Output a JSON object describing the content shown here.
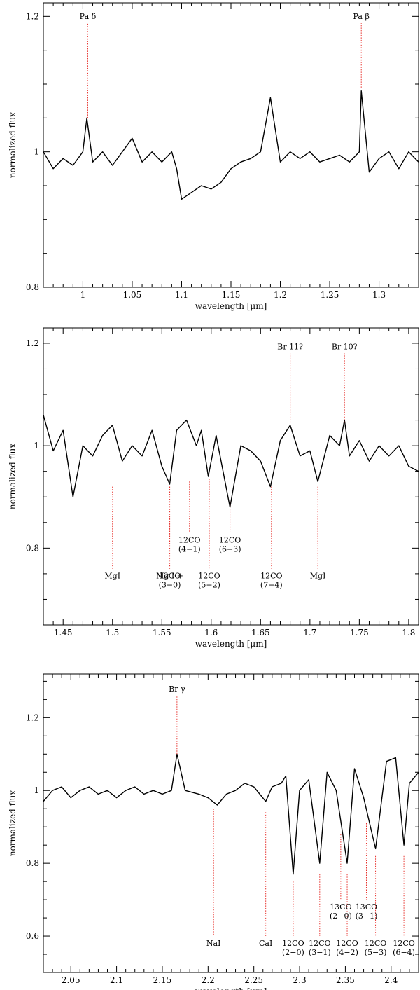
{
  "chart_data": [
    {
      "type": "line",
      "xlabel": "wavelength [μm]",
      "ylabel": "normalized flux",
      "xlim": [
        0.96,
        1.34
      ],
      "ylim": [
        0.8,
        1.22
      ],
      "x_ticks": [
        1,
        1.05,
        1.1,
        1.15,
        1.2,
        1.25,
        1.3
      ],
      "x_tick_labels": [
        "1",
        "1.05",
        "1.1",
        "1.15",
        "1.2",
        "1.25",
        "1.3"
      ],
      "y_ticks": [
        0.8,
        1,
        1.2
      ],
      "y_tick_labels": [
        "0.8",
        "1",
        "1.2"
      ],
      "series": [
        {
          "x": [
            0.96,
            0.97,
            0.98,
            0.99,
            1.0,
            1.004,
            1.01,
            1.02,
            1.03,
            1.04,
            1.05,
            1.06,
            1.07,
            1.08,
            1.09,
            1.095,
            1.1,
            1.11,
            1.12,
            1.13,
            1.14,
            1.15,
            1.16,
            1.17,
            1.18,
            1.19,
            1.2,
            1.21,
            1.22,
            1.23,
            1.24,
            1.25,
            1.26,
            1.27,
            1.28,
            1.282,
            1.29,
            1.3,
            1.31,
            1.32,
            1.33,
            1.34
          ],
          "y": [
            1.0,
            0.975,
            0.99,
            0.98,
            1.0,
            1.05,
            0.985,
            1.0,
            0.98,
            1.0,
            1.02,
            0.985,
            1.0,
            0.985,
            1.0,
            0.975,
            0.93,
            0.94,
            0.95,
            0.945,
            0.955,
            0.975,
            0.985,
            0.99,
            1.0,
            1.08,
            0.985,
            1.0,
            0.99,
            1.0,
            0.985,
            0.99,
            0.995,
            0.985,
            1.0,
            1.09,
            0.97,
            0.99,
            1.0,
            0.975,
            1.0,
            0.985
          ]
        }
      ],
      "lines": [
        {
          "label": "Pa δ",
          "x": 1.005,
          "y_from": 1.05,
          "y_to": 1.19,
          "label_position": "above"
        },
        {
          "label": "Pa β",
          "x": 1.282,
          "y_from": 1.095,
          "y_to": 1.19,
          "label_position": "above"
        }
      ]
    },
    {
      "type": "line",
      "xlabel": "wavelength [μm]",
      "ylabel": "normalized flux",
      "xlim": [
        1.43,
        1.81
      ],
      "ylim": [
        0.65,
        1.23
      ],
      "x_ticks": [
        1.45,
        1.5,
        1.55,
        1.6,
        1.65,
        1.7,
        1.75,
        1.8
      ],
      "x_tick_labels": [
        "1.45",
        "1.5",
        "1.55",
        "1.6",
        "1.65",
        "1.7",
        "1.75",
        "1.8"
      ],
      "y_ticks": [
        0.8,
        1,
        1.2
      ],
      "y_tick_labels": [
        "0.8",
        "1",
        "1.2"
      ],
      "series": [
        {
          "x": [
            1.43,
            1.44,
            1.45,
            1.46,
            1.47,
            1.48,
            1.49,
            1.5,
            1.51,
            1.52,
            1.53,
            1.54,
            1.55,
            1.558,
            1.565,
            1.575,
            1.585,
            1.59,
            1.597,
            1.605,
            1.61,
            1.619,
            1.63,
            1.64,
            1.65,
            1.66,
            1.67,
            1.68,
            1.69,
            1.7,
            1.708,
            1.72,
            1.73,
            1.735,
            1.74,
            1.75,
            1.76,
            1.77,
            1.78,
            1.79,
            1.8,
            1.81
          ],
          "y": [
            1.06,
            0.99,
            1.03,
            0.9,
            1.0,
            0.98,
            1.02,
            1.04,
            0.97,
            1.0,
            0.98,
            1.03,
            0.96,
            0.925,
            1.03,
            1.05,
            1.0,
            1.03,
            0.94,
            1.02,
            0.97,
            0.88,
            1.0,
            0.99,
            0.97,
            0.92,
            1.01,
            1.04,
            0.98,
            0.99,
            0.93,
            1.02,
            1.0,
            1.05,
            0.98,
            1.01,
            0.97,
            1.0,
            0.98,
            1.0,
            0.96,
            0.95
          ]
        }
      ],
      "lines": [
        {
          "label": "Br 11?",
          "x": 1.68,
          "y_from": 1.045,
          "y_to": 1.18,
          "label_position": "above"
        },
        {
          "label": "Br 10?",
          "x": 1.735,
          "y_from": 1.045,
          "y_to": 1.18,
          "label_position": "above"
        },
        {
          "label": "MgI",
          "x": 1.5,
          "y_from": 0.92,
          "y_to": 0.76,
          "label_position": "below"
        },
        {
          "label": "Mg I +",
          "x": 1.558,
          "y_from": 0.92,
          "y_to": 0.76,
          "label_position": "below"
        },
        {
          "label": "12CO (3−0)",
          "x": 1.558,
          "y_from": 0.92,
          "y_to": 0.76,
          "label_position": "below"
        },
        {
          "label": "12CO (4−1)",
          "x": 1.578,
          "y_from": 0.93,
          "y_to": 0.83,
          "label_position": "below"
        },
        {
          "label": "12CO (5−2)",
          "x": 1.598,
          "y_from": 0.935,
          "y_to": 0.76,
          "label_position": "below"
        },
        {
          "label": "12CO (6−3)",
          "x": 1.619,
          "y_from": 0.89,
          "y_to": 0.83,
          "label_position": "below"
        },
        {
          "label": "12CO (7−4)",
          "x": 1.661,
          "y_from": 0.92,
          "y_to": 0.76,
          "label_position": "below"
        },
        {
          "label": "MgI",
          "x": 1.708,
          "y_from": 0.92,
          "y_to": 0.76,
          "label_position": "below"
        }
      ]
    },
    {
      "type": "line",
      "xlabel": "wavelength [μm]",
      "ylabel": "normalized flux",
      "xlim": [
        2.02,
        2.43
      ],
      "ylim": [
        0.5,
        1.32
      ],
      "x_ticks": [
        2.05,
        2.1,
        2.15,
        2.2,
        2.25,
        2.3,
        2.35,
        2.4
      ],
      "x_tick_labels": [
        "2.05",
        "2.1",
        "2.15",
        "2.2",
        "2.25",
        "2.3",
        "2.35",
        "2.4"
      ],
      "y_ticks": [
        0.6,
        0.8,
        1,
        1.2
      ],
      "y_tick_labels": [
        "0.6",
        "0.8",
        "1",
        "1.2"
      ],
      "series": [
        {
          "x": [
            2.02,
            2.03,
            2.04,
            2.05,
            2.06,
            2.07,
            2.08,
            2.09,
            2.1,
            2.11,
            2.12,
            2.13,
            2.14,
            2.15,
            2.16,
            2.166,
            2.175,
            2.19,
            2.2,
            2.21,
            2.22,
            2.23,
            2.24,
            2.25,
            2.263,
            2.27,
            2.28,
            2.285,
            2.293,
            2.3,
            2.31,
            2.322,
            2.33,
            2.34,
            2.352,
            2.36,
            2.37,
            2.383,
            2.395,
            2.405,
            2.414,
            2.42,
            2.43
          ],
          "y": [
            0.97,
            1.0,
            1.01,
            0.98,
            1.0,
            1.01,
            0.99,
            1.0,
            0.98,
            1.0,
            1.01,
            0.99,
            1.0,
            0.99,
            1.0,
            1.1,
            1.0,
            0.99,
            0.98,
            0.96,
            0.99,
            1.0,
            1.02,
            1.01,
            0.97,
            1.01,
            1.02,
            1.04,
            0.77,
            1.0,
            1.03,
            0.8,
            1.05,
            1.0,
            0.8,
            1.06,
            0.98,
            0.84,
            1.08,
            1.09,
            0.85,
            1.02,
            1.05
          ]
        }
      ],
      "lines": [
        {
          "label": "Br γ",
          "x": 2.166,
          "y_from": 1.1,
          "y_to": 1.26,
          "label_position": "above"
        },
        {
          "label": "NaI",
          "x": 2.206,
          "y_from": 0.95,
          "y_to": 0.6,
          "label_position": "below"
        },
        {
          "label": "CaI",
          "x": 2.263,
          "y_from": 0.94,
          "y_to": 0.6,
          "label_position": "below"
        },
        {
          "label": "12CO (2−0)",
          "x": 2.293,
          "y_from": 0.75,
          "y_to": 0.6,
          "label_position": "below"
        },
        {
          "label": "12CO (3−1)",
          "x": 2.322,
          "y_from": 0.77,
          "y_to": 0.6,
          "label_position": "below"
        },
        {
          "label": "12CO (4−2)",
          "x": 2.352,
          "y_from": 0.77,
          "y_to": 0.6,
          "label_position": "below"
        },
        {
          "label": "12CO (5−3)",
          "x": 2.383,
          "y_from": 0.82,
          "y_to": 0.6,
          "label_position": "below"
        },
        {
          "label": "12CO (6−4)",
          "x": 2.414,
          "y_from": 0.82,
          "y_to": 0.6,
          "label_position": "below"
        },
        {
          "label": "13CO (2−0)",
          "x": 2.345,
          "y_from": 0.88,
          "y_to": 0.7,
          "label_position": "below"
        },
        {
          "label": "13CO (3−1)",
          "x": 2.373,
          "y_from": 0.91,
          "y_to": 0.7,
          "label_position": "below"
        }
      ]
    }
  ]
}
